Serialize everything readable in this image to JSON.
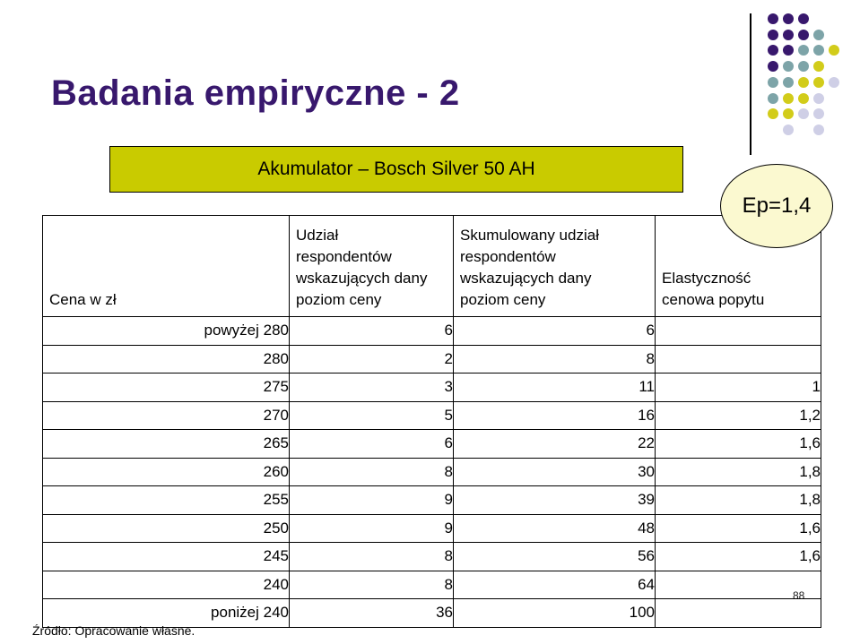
{
  "slide": {
    "title": "Badania empiryczne - 2",
    "banner_label": "Akumulator – Bosch Silver 50 AH",
    "callout_label": "Ep=1,4",
    "source_note": "Źródło: Opracowanie własne.",
    "page_number": "88"
  },
  "colors": {
    "title_text": "#38186d",
    "banner_bg": "#c9cb00",
    "callout_bg": "#fbf9d0",
    "dot_purple": "#38186d",
    "dot_teal": "#7da4a8",
    "dot_yellow": "#d2cc1a",
    "dot_lavender": "#cfcfe6"
  },
  "decoration_dots": {
    "rows": [
      [
        "purple",
        "purple",
        "purple",
        null,
        null
      ],
      [
        "purple",
        "purple",
        "purple",
        "teal",
        null
      ],
      [
        "purple",
        "purple",
        "teal",
        "teal",
        "yellow"
      ],
      [
        "purple",
        "teal",
        "teal",
        "yellow",
        null
      ],
      [
        "teal",
        "teal",
        "yellow",
        "yellow",
        "lavender"
      ],
      [
        "teal",
        "yellow",
        "yellow",
        "lavender",
        null
      ],
      [
        "yellow",
        "yellow",
        "lavender",
        "lavender",
        null
      ],
      [
        null,
        "lavender",
        null,
        "lavender",
        null
      ]
    ]
  },
  "table": {
    "headers": [
      "Cena w zł",
      "Udział\nrespondentów\nwskazujących dany\npoziom ceny",
      "Skumulowany udział\nrespondentów\nwskazujących dany\npoziom ceny",
      "Elastyczność\ncenowa popytu"
    ],
    "rows": [
      [
        "powyżej 280",
        "6",
        "6",
        ""
      ],
      [
        "280",
        "2",
        "8",
        ""
      ],
      [
        "275",
        "3",
        "11",
        "1"
      ],
      [
        "270",
        "5",
        "16",
        "1,2"
      ],
      [
        "265",
        "6",
        "22",
        "1,6"
      ],
      [
        "260",
        "8",
        "30",
        "1,8"
      ],
      [
        "255",
        "9",
        "39",
        "1,8"
      ],
      [
        "250",
        "9",
        "48",
        "1,6"
      ],
      [
        "245",
        "8",
        "56",
        "1,6"
      ],
      [
        "240",
        "8",
        "64",
        ""
      ],
      [
        "poniżej 240",
        "36",
        "100",
        ""
      ]
    ]
  }
}
